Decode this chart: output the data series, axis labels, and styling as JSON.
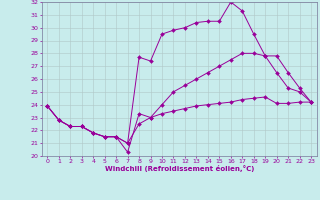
{
  "title": "",
  "xlabel": "Windchill (Refroidissement éolien,°C)",
  "ylabel": "",
  "xlim": [
    -0.5,
    23.5
  ],
  "ylim": [
    20,
    32
  ],
  "xticks": [
    0,
    1,
    2,
    3,
    4,
    5,
    6,
    7,
    8,
    9,
    10,
    11,
    12,
    13,
    14,
    15,
    16,
    17,
    18,
    19,
    20,
    21,
    22,
    23
  ],
  "yticks": [
    20,
    21,
    22,
    23,
    24,
    25,
    26,
    27,
    28,
    29,
    30,
    31,
    32
  ],
  "bg_color": "#c8ecec",
  "grid_color": "#b0c8c8",
  "line_color": "#990099",
  "lines": [
    [
      23.9,
      22.8,
      22.3,
      22.3,
      21.8,
      21.5,
      21.5,
      20.3,
      23.3,
      23.0,
      23.3,
      23.5,
      23.7,
      23.9,
      24.0,
      24.1,
      24.2,
      24.4,
      24.5,
      24.6,
      24.1,
      24.1,
      24.2,
      24.2
    ],
    [
      23.9,
      22.8,
      22.3,
      22.3,
      21.8,
      21.5,
      21.5,
      21.0,
      27.7,
      27.4,
      29.5,
      29.8,
      30.0,
      30.4,
      30.5,
      30.5,
      32.0,
      31.3,
      29.5,
      27.8,
      26.5,
      25.3,
      25.0,
      24.2
    ],
    [
      23.9,
      22.8,
      22.3,
      22.3,
      21.8,
      21.5,
      21.5,
      21.0,
      22.5,
      23.0,
      24.0,
      25.0,
      25.5,
      26.0,
      26.5,
      27.0,
      27.5,
      28.0,
      28.0,
      27.8,
      27.8,
      26.5,
      25.3,
      24.2
    ]
  ],
  "xlabel_fontsize": 5.0,
  "tick_fontsize": 4.5,
  "linewidth": 0.7,
  "markersize": 2.0
}
